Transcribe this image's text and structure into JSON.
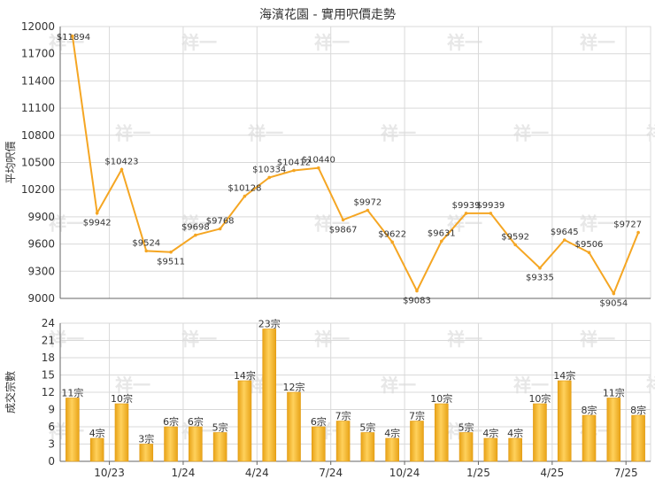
{
  "title": "海濱花園 - 實用呎價走勢",
  "watermark": "祥一",
  "colors": {
    "line": "#f5a623",
    "bar": "#f3b62c",
    "bar_edge": "#e29a12",
    "grid": "#d9d9d9",
    "axis": "#666666"
  },
  "chart_data": [
    {
      "type": "line",
      "ylabel": "平均呎價",
      "ylim": [
        9000,
        12000
      ],
      "yticks": [
        "9000",
        "9300",
        "9600",
        "9900",
        "10200",
        "10500",
        "10800",
        "11100",
        "11400",
        "11700",
        "12000"
      ],
      "point_labels": [
        "$11894",
        "$9942",
        "$10423",
        "$9524",
        "$9511",
        "$9698",
        "$9768",
        "$10128",
        "$10334",
        "$10412",
        "$10440",
        "$9867",
        "$9972",
        "$9622",
        "$9083",
        "$9631",
        "$9939",
        "$9939",
        "$9592",
        "$9335",
        "$9645",
        "$9506",
        "$9054",
        "$9727"
      ],
      "values": [
        11894,
        9942,
        10423,
        9524,
        9511,
        9698,
        9768,
        10128,
        10334,
        10412,
        10440,
        9867,
        9972,
        9622,
        9083,
        9631,
        9939,
        9939,
        9592,
        9335,
        9645,
        9506,
        9054,
        9727
      ]
    },
    {
      "type": "bar",
      "ylabel": "成交宗數",
      "ylim": [
        0,
        24
      ],
      "yticks": [
        "0",
        "3",
        "6",
        "9",
        "12",
        "15",
        "18",
        "21",
        "24"
      ],
      "xticks": [
        "10/23",
        "1/24",
        "4/24",
        "7/24",
        "10/24",
        "1/25",
        "4/25",
        "7/25"
      ],
      "bar_labels": [
        "11宗",
        "4宗",
        "10宗",
        "3宗",
        "6宗",
        "6宗",
        "5宗",
        "14宗",
        "23宗",
        "12宗",
        "6宗",
        "7宗",
        "5宗",
        "4宗",
        "7宗",
        "10宗",
        "5宗",
        "4宗",
        "4宗",
        "10宗",
        "14宗",
        "8宗",
        "11宗",
        "8宗"
      ],
      "values": [
        11,
        4,
        10,
        3,
        6,
        6,
        5,
        14,
        23,
        12,
        6,
        7,
        5,
        4,
        7,
        10,
        5,
        4,
        4,
        10,
        14,
        8,
        11,
        8
      ]
    }
  ]
}
